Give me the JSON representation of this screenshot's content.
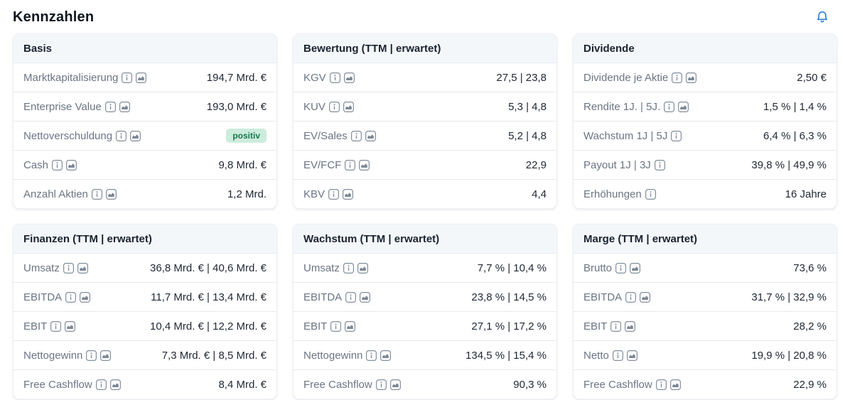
{
  "header": {
    "title": "Kennzahlen",
    "bell_icon": "notification-bell"
  },
  "colors": {
    "bell_accent": "#2e7cd6",
    "badge_positive_bg": "#cdecdb",
    "badge_positive_text": "#157a50",
    "card_header_bg": "#f4f7fa"
  },
  "cards": [
    {
      "title": "Basis",
      "rows": [
        {
          "label": "Marktkapitalisierung",
          "icons": [
            "info-icon",
            "chart-icon"
          ],
          "value": "194,7 Mrd. €"
        },
        {
          "label": "Enterprise Value",
          "icons": [
            "info-icon",
            "chart-icon"
          ],
          "value": "193,0 Mrd. €"
        },
        {
          "label": "Nettoverschuldung",
          "icons": [
            "info-icon",
            "chart-icon"
          ],
          "badge": "positiv"
        },
        {
          "label": "Cash",
          "icons": [
            "info-icon",
            "chart-icon"
          ],
          "value": "9,8 Mrd. €"
        },
        {
          "label": "Anzahl Aktien",
          "icons": [
            "info-icon",
            "chart-icon"
          ],
          "value": "1,2 Mrd."
        }
      ]
    },
    {
      "title": "Bewertung (TTM | erwartet)",
      "rows": [
        {
          "label": "KGV",
          "icons": [
            "info-icon",
            "chart-icon"
          ],
          "value": "27,5 | 23,8"
        },
        {
          "label": "KUV",
          "icons": [
            "info-icon",
            "chart-icon"
          ],
          "value": "5,3 | 4,8"
        },
        {
          "label": "EV/Sales",
          "icons": [
            "info-icon",
            "chart-icon"
          ],
          "value": "5,2 | 4,8"
        },
        {
          "label": "EV/FCF",
          "icons": [
            "info-icon",
            "chart-icon"
          ],
          "value": "22,9"
        },
        {
          "label": "KBV",
          "icons": [
            "info-icon",
            "chart-icon"
          ],
          "value": "4,4"
        }
      ]
    },
    {
      "title": "Dividende",
      "rows": [
        {
          "label": "Dividende je Aktie",
          "icons": [
            "info-icon",
            "chart-icon"
          ],
          "value": "2,50 €"
        },
        {
          "label": "Rendite 1J. | 5J.",
          "icons": [
            "info-icon",
            "chart-icon"
          ],
          "value": "1,5 % | 1,4 %"
        },
        {
          "label": "Wachstum 1J | 5J",
          "icons": [
            "info-icon"
          ],
          "value": "6,4 % | 6,3 %"
        },
        {
          "label": "Payout 1J | 3J",
          "icons": [
            "info-icon"
          ],
          "value": "39,8 % | 49,9 %"
        },
        {
          "label": "Erhöhungen",
          "icons": [
            "info-icon"
          ],
          "value": "16 Jahre"
        }
      ]
    },
    {
      "title": "Finanzen (TTM | erwartet)",
      "rows": [
        {
          "label": "Umsatz",
          "icons": [
            "info-icon",
            "chart-icon"
          ],
          "value": "36,8 Mrd. € | 40,6 Mrd. €"
        },
        {
          "label": "EBITDA",
          "icons": [
            "info-icon",
            "chart-icon"
          ],
          "value": "11,7 Mrd. € | 13,4 Mrd. €"
        },
        {
          "label": "EBIT",
          "icons": [
            "info-icon",
            "chart-icon"
          ],
          "value": "10,4 Mrd. € | 12,2 Mrd. €"
        },
        {
          "label": "Nettogewinn",
          "icons": [
            "info-icon",
            "chart-icon"
          ],
          "value": "7,3 Mrd. € | 8,5 Mrd. €"
        },
        {
          "label": "Free Cashflow",
          "icons": [
            "info-icon",
            "chart-icon"
          ],
          "value": "8,4 Mrd. €"
        }
      ]
    },
    {
      "title": "Wachstum (TTM | erwartet)",
      "rows": [
        {
          "label": "Umsatz",
          "icons": [
            "info-icon",
            "chart-icon"
          ],
          "value": "7,7 % | 10,4 %"
        },
        {
          "label": "EBITDA",
          "icons": [
            "info-icon",
            "chart-icon"
          ],
          "value": "23,8 % | 14,5 %"
        },
        {
          "label": "EBIT",
          "icons": [
            "info-icon",
            "chart-icon"
          ],
          "value": "27,1 % | 17,2 %"
        },
        {
          "label": "Nettogewinn",
          "icons": [
            "info-icon",
            "chart-icon"
          ],
          "value": "134,5 % | 15,4 %"
        },
        {
          "label": "Free Cashflow",
          "icons": [
            "info-icon",
            "chart-icon"
          ],
          "value": "90,3 %"
        }
      ]
    },
    {
      "title": "Marge (TTM | erwartet)",
      "rows": [
        {
          "label": "Brutto",
          "icons": [
            "info-icon",
            "chart-icon"
          ],
          "value": "73,6 %"
        },
        {
          "label": "EBITDA",
          "icons": [
            "info-icon",
            "chart-icon"
          ],
          "value": "31,7 % | 32,9 %"
        },
        {
          "label": "EBIT",
          "icons": [
            "info-icon",
            "chart-icon"
          ],
          "value": "28,2 %"
        },
        {
          "label": "Netto",
          "icons": [
            "info-icon",
            "chart-icon"
          ],
          "value": "19,9 % | 20,8 %"
        },
        {
          "label": "Free Cashflow",
          "icons": [
            "info-icon",
            "chart-icon"
          ],
          "value": "22,9 %"
        }
      ]
    }
  ]
}
